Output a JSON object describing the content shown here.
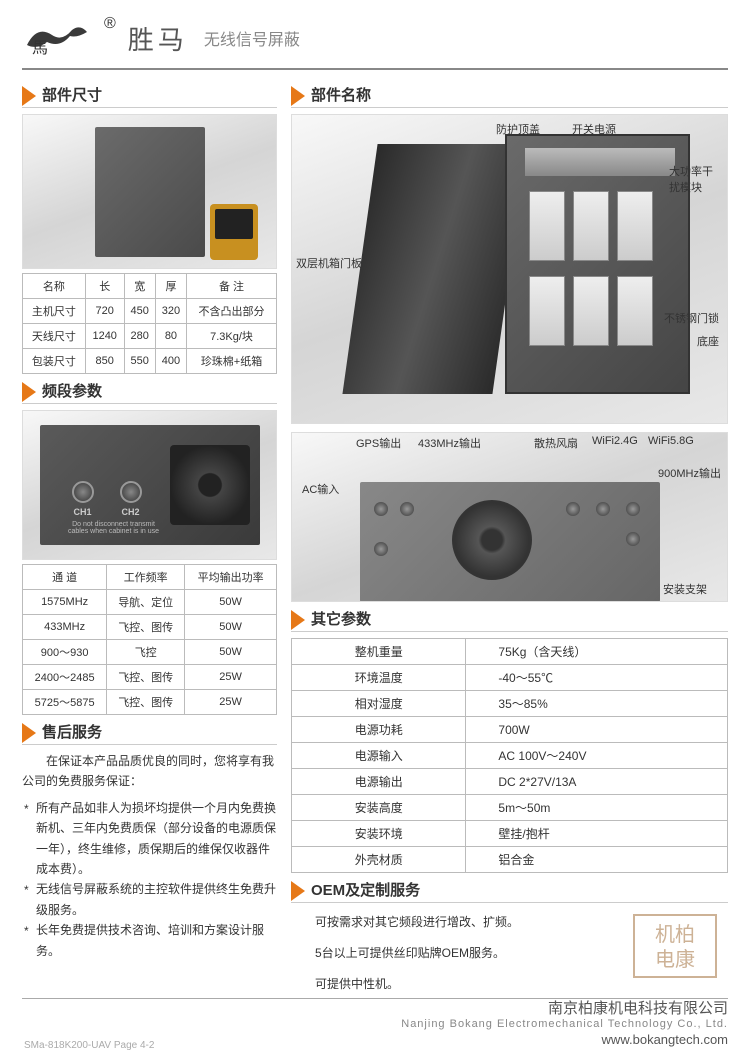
{
  "accent_color": "#e67817",
  "brand": {
    "name": "胜马",
    "subtitle": "无线信号屏蔽",
    "reg_mark": "®"
  },
  "sections": {
    "dimensions": "部件尺寸",
    "parts": "部件名称",
    "frequency": "频段参数",
    "other": "其它参数",
    "service": "售后服务",
    "oem": "OEM及定制服务"
  },
  "dim_table": {
    "headers": [
      "名称",
      "长",
      "宽",
      "厚",
      "备 注"
    ],
    "rows": [
      [
        "主机尺寸",
        "720",
        "450",
        "320",
        "不含凸出部分"
      ],
      [
        "天线尺寸",
        "1240",
        "280",
        "80",
        "7.3Kg/块"
      ],
      [
        "包装尺寸",
        "850",
        "550",
        "400",
        "珍珠棉+纸箱"
      ]
    ]
  },
  "freq_table": {
    "headers": [
      "通 道",
      "工作频率",
      "平均输出功率"
    ],
    "rows": [
      [
        "1575MHz",
        "导航、定位",
        "50W"
      ],
      [
        "433MHz",
        "飞控、图传",
        "50W"
      ],
      [
        "900～930",
        "飞控",
        "50W"
      ],
      [
        "2400～2485",
        "飞控、图传",
        "25W"
      ],
      [
        "5725～5875",
        "飞控、图传",
        "25W"
      ]
    ]
  },
  "photo2_labels": {
    "ch1": "CH1",
    "ch2": "CH2",
    "warn": "Do not disconnect transmit cables when cabinet is in use"
  },
  "parts_callouts": {
    "top_cover": "防护顶盖",
    "power_switch": "开关电源",
    "hp_module": "大功率干扰模块",
    "door_panel": "双层机箱门板",
    "steel_lock": "不锈钢门锁",
    "base": "底座"
  },
  "back_callouts": {
    "gps_out": "GPS输出",
    "mhz433": "433MHz输出",
    "ac_in": "AC输入",
    "fan": "散热风扇",
    "wifi24": "WiFi2.4G",
    "wifi58": "WiFi5.8G",
    "mhz900": "900MHz输出",
    "bracket": "安装支架"
  },
  "other_params": {
    "rows": [
      [
        "整机重量",
        "75Kg（含天线）"
      ],
      [
        "环境温度",
        "-40～55℃"
      ],
      [
        "相对湿度",
        "35～85%"
      ],
      [
        "电源功耗",
        "700W"
      ],
      [
        "电源输入",
        "AC  100V～240V"
      ],
      [
        "电源输出",
        "DC  2*27V/13A"
      ],
      [
        "安装高度",
        "5m～50m"
      ],
      [
        "安装环境",
        "壁挂/抱杆"
      ],
      [
        "外壳材质",
        "铝合金"
      ]
    ]
  },
  "service": {
    "intro": "在保证本产品品质优良的同时，您将享有我公司的免费服务保证：",
    "items": [
      "所有产品如非人为损坏均提供一个月内免费换新机、三年内免费质保（部分设备的电源质保一年），终生维修，质保期后的维保仅收器件成本费）。",
      "无线信号屏蔽系统的主控软件提供终生免费升级服务。",
      "长年免费提供技术咨询、培训和方案设计服务。"
    ]
  },
  "oem": {
    "lines": [
      "可按需求对其它频段进行增改、扩频。",
      "5台以上可提供丝印贴牌OEM服务。",
      "可提供中性机。"
    ]
  },
  "footer": {
    "company_cn": "南京柏康机电科技有限公司",
    "company_en": "Nanjing Bokang Electromechanical Technology Co., Ltd.",
    "url": "www.bokangtech.com",
    "page": "SMa-818K200-UAV Page 4-2",
    "stamp_text": "机柏电康"
  }
}
